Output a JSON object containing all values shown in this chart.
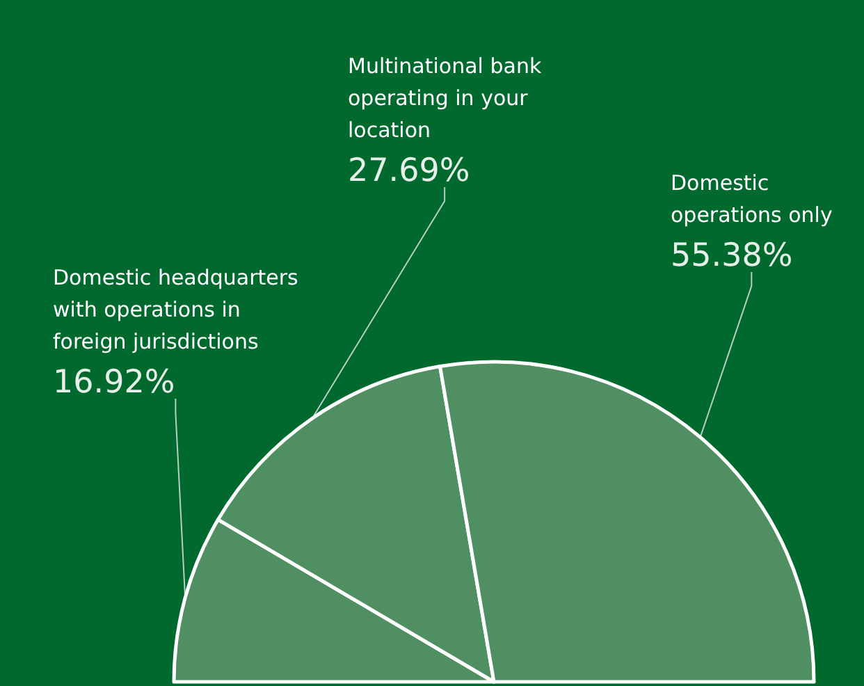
{
  "chart_data": {
    "type": "pie",
    "categories": [
      "Domestic headquarters with operations in foreign jurisdictions",
      "Multinational bank operating in your location",
      "Domestic operations only"
    ],
    "values": [
      16.92,
      27.69,
      55.38
    ],
    "value_labels": [
      "16.92%",
      "27.69%",
      "55.38%"
    ],
    "colors": [
      "#4f8f62",
      "#4f8f62",
      "#4f8f62"
    ],
    "data_labels": true
  }
}
